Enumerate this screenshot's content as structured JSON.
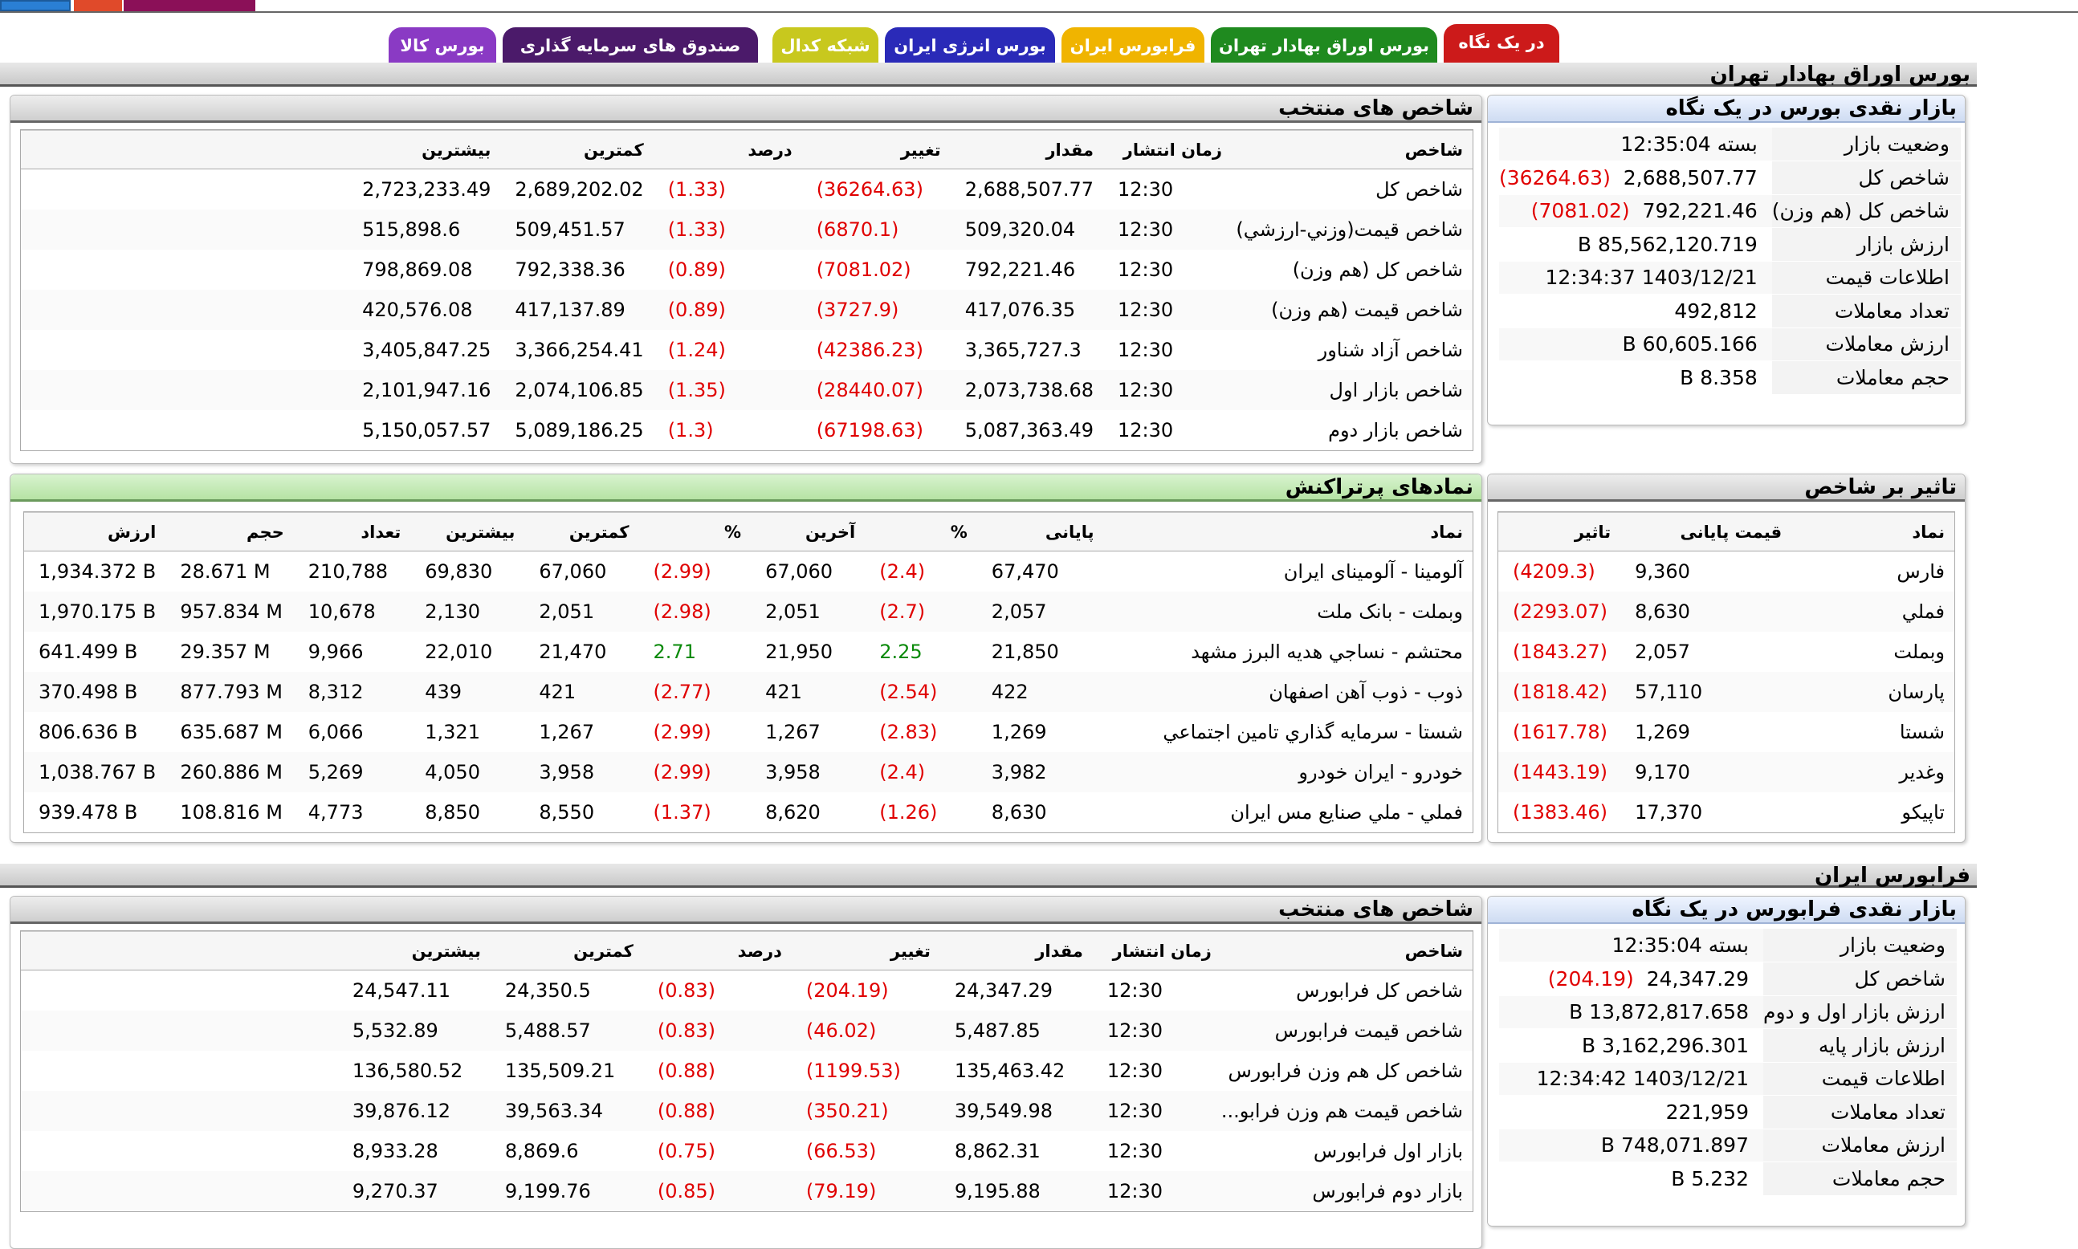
{
  "tabs": [
    {
      "label": "در یک نگاه",
      "color": "#cc1a1a"
    },
    {
      "label": "بورس اوراق بهادار تهران",
      "color": "#1f8a1f"
    },
    {
      "label": "فرابورس ایران",
      "color": "#f0b400"
    },
    {
      "label": "بورس انرژی ایران",
      "color": "#2a2ab8"
    },
    {
      "label": "شبکه کدال",
      "color": "#c8c81e"
    },
    {
      "label": "صندوق های سرمایه گذاری",
      "color": "#4b1a6a"
    },
    {
      "label": "بورس کالا",
      "color": "#8a3ac4"
    }
  ],
  "tse": {
    "section_title": "بورس اوراق بهادار تهران",
    "snapshot": {
      "title": "بازار نقدی بورس در یک نگاه",
      "rows": [
        {
          "label": "وضعیت بازار",
          "value": "بسته 12:35:04",
          "change": ""
        },
        {
          "label": "شاخص کل",
          "value": "2,688,507.77",
          "change": "(36264.63)"
        },
        {
          "label": "شاخص کل (هم وزن)",
          "value": "792,221.46",
          "change": "(7081.02)"
        },
        {
          "label": "ارزش بازار",
          "value": "85,562,120.719 B",
          "change": ""
        },
        {
          "label": "اطلاعات قیمت",
          "value": "1403/12/21 12:34:37",
          "change": ""
        },
        {
          "label": "تعداد معاملات",
          "value": "492,812",
          "change": ""
        },
        {
          "label": "ارزش معاملات",
          "value": "60,605.166 B",
          "change": ""
        },
        {
          "label": "حجم معاملات",
          "value": "8.358 B",
          "change": ""
        }
      ]
    },
    "indices": {
      "title": "شاخص های منتخب",
      "headers": [
        "شاخص",
        "زمان انتشار",
        "مقدار",
        "تغییر",
        "درصد",
        "کمترین",
        "بیشترین"
      ],
      "rows": [
        [
          "شاخص کل",
          "12:30",
          "2,688,507.77",
          "(36264.63)",
          "(1.33)",
          "2,689,202.02",
          "2,723,233.49"
        ],
        [
          "شاخص قیمت(وزني-ارزشي)",
          "12:30",
          "509,320.04",
          "(6870.1)",
          "(1.33)",
          "509,451.57",
          "515,898.6"
        ],
        [
          "شاخص کل (هم وزن)",
          "12:30",
          "792,221.46",
          "(7081.02)",
          "(0.89)",
          "792,338.36",
          "798,869.08"
        ],
        [
          "شاخص قیمت (هم وزن)",
          "12:30",
          "417,076.35",
          "(3727.9)",
          "(0.89)",
          "417,137.89",
          "420,576.08"
        ],
        [
          "شاخص آزاد شناور",
          "12:30",
          "3,365,727.3",
          "(42386.23)",
          "(1.24)",
          "3,366,254.41",
          "3,405,847.25"
        ],
        [
          "شاخص بازار اول",
          "12:30",
          "2,073,738.68",
          "(28440.07)",
          "(1.35)",
          "2,074,106.85",
          "2,101,947.16"
        ],
        [
          "شاخص بازار دوم",
          "12:30",
          "5,087,363.49",
          "(67198.63)",
          "(1.3)",
          "5,089,186.25",
          "5,150,057.57"
        ]
      ]
    },
    "impact": {
      "title": "تاثیر بر شاخص",
      "headers": [
        "نماد",
        "قیمت پایانی",
        "تاثیر"
      ],
      "rows": [
        [
          "فارس",
          "9,360",
          "(4209.3)"
        ],
        [
          "فملي",
          "8,630",
          "(2293.07)"
        ],
        [
          "وبملت",
          "2,057",
          "(1843.27)"
        ],
        [
          "پارسان",
          "57,110",
          "(1818.42)"
        ],
        [
          "شستا",
          "1,269",
          "(1617.78)"
        ],
        [
          "وغدير",
          "9,170",
          "(1443.19)"
        ],
        [
          "تاپيکو",
          "17,370",
          "(1383.46)"
        ]
      ]
    },
    "hot": {
      "title": "نمادهای پرتراکنش",
      "headers": [
        "نماد",
        "پایانی",
        "%",
        "آخرین",
        "%",
        "کمترین",
        "بیشترین",
        "تعداد",
        "حجم",
        "ارزش"
      ],
      "rows": [
        [
          "آلومينا - آلومينای ايران",
          "67,470",
          "(2.4)",
          "67,060",
          "(2.99)",
          "67,060",
          "69,830",
          "210,788",
          "28.671 M",
          "1,934.372 B"
        ],
        [
          "وبملت - بانک ملت",
          "2,057",
          "(2.7)",
          "2,051",
          "(2.98)",
          "2,051",
          "2,130",
          "10,678",
          "957.834 M",
          "1,970.175 B"
        ],
        [
          "محتشم - نساجي هديه البرز مشهد",
          "21,850",
          "2.25",
          "21,950",
          "2.71",
          "21,470",
          "22,010",
          "9,966",
          "29.357 M",
          "641.499 B"
        ],
        [
          "ذوب - ذوب آهن اصفهان",
          "422",
          "(2.54)",
          "421",
          "(2.77)",
          "421",
          "439",
          "8,312",
          "877.793 M",
          "370.498 B"
        ],
        [
          "شستا - سرمايه گذاري تامين اجتماعي",
          "1,269",
          "(2.83)",
          "1,267",
          "(2.99)",
          "1,267",
          "1,321",
          "6,066",
          "635.687 M",
          "806.636 B"
        ],
        [
          "خودرو - ايران خودرو",
          "3,982",
          "(2.4)",
          "3,958",
          "(2.99)",
          "3,958",
          "4,050",
          "5,269",
          "260.886 M",
          "1,038.767 B"
        ],
        [
          "فملي - ملي صنايع مس ايران",
          "8,630",
          "(1.26)",
          "8,620",
          "(1.37)",
          "8,550",
          "8,850",
          "4,773",
          "108.816 M",
          "939.478 B"
        ]
      ]
    }
  },
  "ifb": {
    "section_title": "فرابورس ایران",
    "snapshot": {
      "title": "بازار نقدی فرابورس در یک نگاه",
      "rows": [
        {
          "label": "وضعیت بازار",
          "value": "بسته 12:35:04",
          "change": ""
        },
        {
          "label": "شاخص کل",
          "value": "24,347.29",
          "change": "(204.19)"
        },
        {
          "label": "ارزش بازار اول و دوم",
          "value": "13,872,817.658 B",
          "change": ""
        },
        {
          "label": "ارزش بازار پایه",
          "value": "3,162,296.301 B",
          "change": ""
        },
        {
          "label": "اطلاعات قیمت",
          "value": "1403/12/21 12:34:42",
          "change": ""
        },
        {
          "label": "تعداد معاملات",
          "value": "221,959",
          "change": ""
        },
        {
          "label": "ارزش معاملات",
          "value": "748,071.897 B",
          "change": ""
        },
        {
          "label": "حجم معاملات",
          "value": "5.232 B",
          "change": ""
        }
      ]
    },
    "indices": {
      "title": "شاخص های منتخب",
      "headers": [
        "شاخص",
        "زمان انتشار",
        "مقدار",
        "تغییر",
        "درصد",
        "کمترین",
        "بیشترین"
      ],
      "rows": [
        [
          "شاخص كل فرابورس",
          "12:30",
          "24,347.29",
          "(204.19)",
          "(0.83)",
          "24,350.5",
          "24,547.11"
        ],
        [
          "شاخص قيمت فرابورس",
          "12:30",
          "5,487.85",
          "(46.02)",
          "(0.83)",
          "5,488.57",
          "5,532.89"
        ],
        [
          "شاخص کل هم وزن فرابورس",
          "12:30",
          "135,463.42",
          "(1199.53)",
          "(0.88)",
          "135,509.21",
          "136,580.52"
        ],
        [
          "شاخص قيمت هم وزن فرابو...",
          "12:30",
          "39,549.98",
          "(350.21)",
          "(0.88)",
          "39,563.34",
          "39,876.12"
        ],
        [
          "بازار اول فرابورس",
          "12:30",
          "8,862.31",
          "(66.53)",
          "(0.75)",
          "8,869.6",
          "8,933.28"
        ],
        [
          "بازار دوم فرابورس",
          "12:30",
          "9,195.88",
          "(79.19)",
          "(0.85)",
          "9,199.76",
          "9,270.37"
        ]
      ]
    }
  }
}
